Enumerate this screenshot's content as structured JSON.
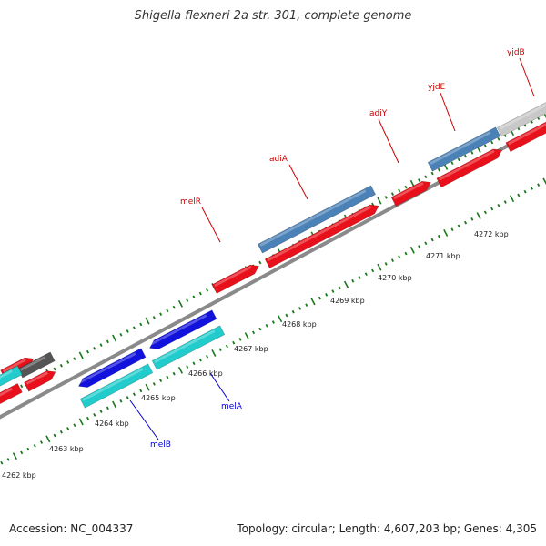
{
  "title": "Shigella flexneri 2a str. 301, complete genome",
  "footer": {
    "accession": "Accession: NC_004337",
    "summary": "Topology: circular; Length: 4,607,203 bp; Genes: 4,305"
  },
  "colors": {
    "forward_arrow": "#e8101a",
    "steelblue_box": "#4a82b8",
    "blue_gene": "#1212dd",
    "cyan_gene": "#22cccc",
    "dark_gray_gene": "#555555",
    "light_gray_gene": "#c8c8c8",
    "backbone": "#8a8a8a",
    "tick": "#1a7a1a",
    "label_red": "#cc0000",
    "label_blue": "#0000cc"
  },
  "scale_labels": [
    "4262 kbp",
    "4263 kbp",
    "4264 kbp",
    "4265 kbp",
    "4266 kbp",
    "4267 kbp",
    "4268 kbp",
    "4269 kbp",
    "4270 kbp",
    "4271 kbp",
    "4272 kbp"
  ],
  "gene_labels": [
    {
      "text": "melR",
      "color": "label_red"
    },
    {
      "text": "adiA",
      "color": "label_red"
    },
    {
      "text": "adiY",
      "color": "label_red"
    },
    {
      "text": "yjdE",
      "color": "label_red"
    },
    {
      "text": "yjdB",
      "color": "label_red"
    },
    {
      "text": "melA",
      "color": "label_blue"
    },
    {
      "text": "melB",
      "color": "label_blue"
    }
  ]
}
